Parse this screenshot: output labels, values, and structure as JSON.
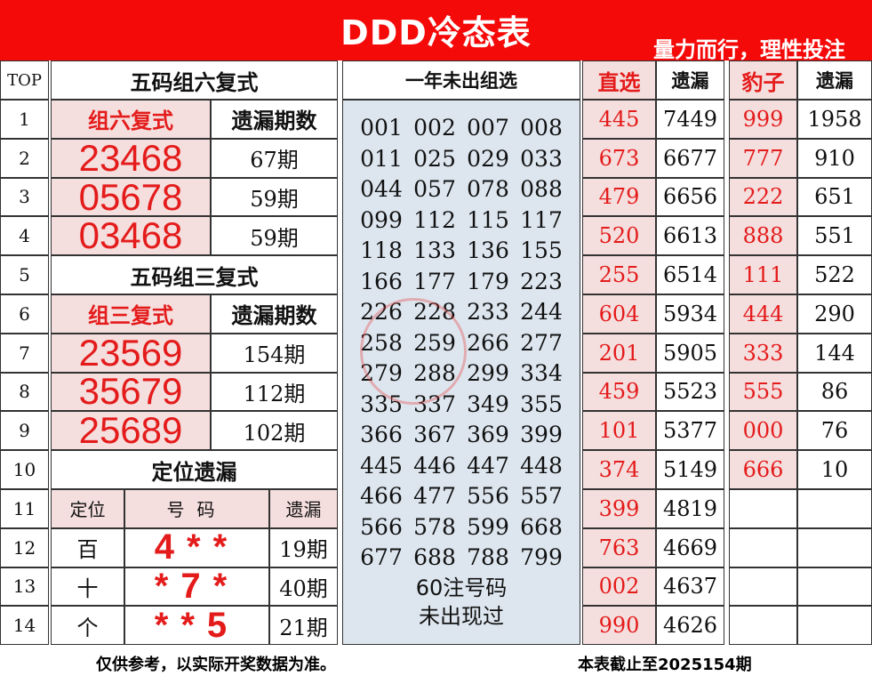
{
  "header": {
    "title": "DDD冷态表",
    "slogan": "量力而行，理性投注"
  },
  "columns": {
    "top": "TOP",
    "left_title": "五码组六复式",
    "middle_title": "一年未出组选",
    "direct": "直选",
    "direct_miss": "遗漏",
    "leopard": "豹子",
    "leopard_miss": "遗漏"
  },
  "rank": [
    "1",
    "2",
    "3",
    "4",
    "5",
    "6",
    "7",
    "8",
    "9",
    "10",
    "11",
    "12",
    "13",
    "14"
  ],
  "group6": {
    "label": "组六复式",
    "miss_label": "遗漏期数",
    "rows": [
      {
        "num": "23468",
        "miss": "67期"
      },
      {
        "num": "05678",
        "miss": "59期"
      },
      {
        "num": "03468",
        "miss": "59期"
      }
    ]
  },
  "group3_title": "五码组三复式",
  "group3": {
    "label": "组三复式",
    "miss_label": "遗漏期数",
    "rows": [
      {
        "num": "23569",
        "miss": "154期"
      },
      {
        "num": "35679",
        "miss": "112期"
      },
      {
        "num": "25689",
        "miss": "102期"
      }
    ]
  },
  "position_title": "定位遗漏",
  "position": {
    "h_pos": "定位",
    "h_code": "号码",
    "h_miss": "遗漏",
    "rows": [
      {
        "pos": "百",
        "code": "4**",
        "miss": "19期"
      },
      {
        "pos": "十",
        "code": "*7*",
        "miss": "40期"
      },
      {
        "pos": "个",
        "code": "**5",
        "miss": "21期"
      }
    ]
  },
  "unseen": {
    "numbers": [
      "001",
      "002",
      "007",
      "008",
      "011",
      "025",
      "029",
      "033",
      "044",
      "057",
      "078",
      "088",
      "099",
      "112",
      "115",
      "117",
      "118",
      "133",
      "136",
      "155",
      "166",
      "177",
      "179",
      "223",
      "226",
      "228",
      "233",
      "244",
      "258",
      "259",
      "266",
      "277",
      "279",
      "288",
      "299",
      "334",
      "335",
      "337",
      "349",
      "355",
      "366",
      "367",
      "369",
      "399",
      "445",
      "446",
      "447",
      "448",
      "466",
      "477",
      "556",
      "557",
      "566",
      "578",
      "599",
      "668",
      "677",
      "688",
      "788",
      "799"
    ],
    "note1": "60注号码",
    "note2": "未出现过"
  },
  "direct": [
    {
      "num": "445",
      "miss": "7449"
    },
    {
      "num": "673",
      "miss": "6677"
    },
    {
      "num": "479",
      "miss": "6656"
    },
    {
      "num": "520",
      "miss": "6613"
    },
    {
      "num": "255",
      "miss": "6514"
    },
    {
      "num": "604",
      "miss": "5934"
    },
    {
      "num": "201",
      "miss": "5905"
    },
    {
      "num": "459",
      "miss": "5523"
    },
    {
      "num": "101",
      "miss": "5377"
    },
    {
      "num": "374",
      "miss": "5149"
    },
    {
      "num": "399",
      "miss": "4819"
    },
    {
      "num": "763",
      "miss": "4669"
    },
    {
      "num": "002",
      "miss": "4637"
    },
    {
      "num": "990",
      "miss": "4626"
    }
  ],
  "leopard": [
    {
      "num": "999",
      "miss": "1958"
    },
    {
      "num": "777",
      "miss": "910"
    },
    {
      "num": "222",
      "miss": "651"
    },
    {
      "num": "888",
      "miss": "551"
    },
    {
      "num": "111",
      "miss": "522"
    },
    {
      "num": "444",
      "miss": "290"
    },
    {
      "num": "333",
      "miss": "144"
    },
    {
      "num": "555",
      "miss": "86"
    },
    {
      "num": "000",
      "miss": "76"
    },
    {
      "num": "666",
      "miss": "10"
    }
  ],
  "footer": {
    "disclaimer": "仅供参考，以实际开奖数据为准。",
    "cutoff": "本表截止至2025154期"
  },
  "colors": {
    "header_red": "#f50a0a",
    "accent_red": "#e41b1b",
    "pink": "#f5dede",
    "middle_blue": "#dde6ef"
  }
}
